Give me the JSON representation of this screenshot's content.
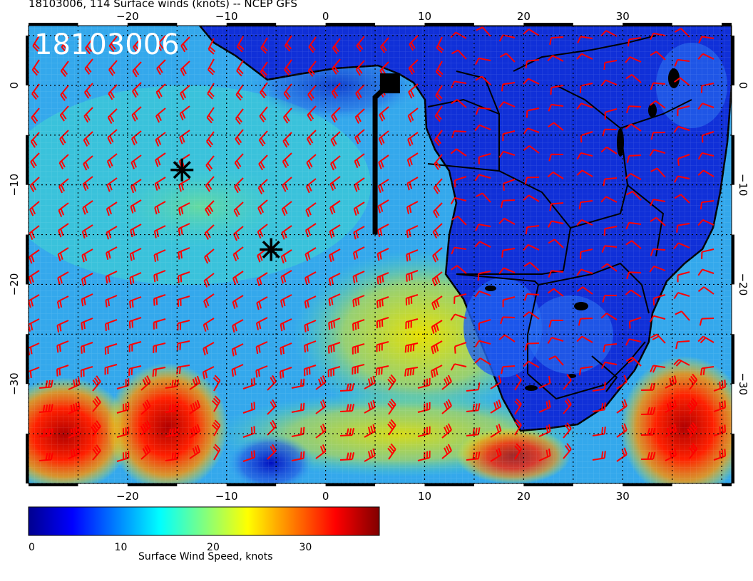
{
  "map_title": "18103006, 114 Surface winds (knots) -- NCEP GFS",
  "timestamp_label": "18103006",
  "colorbar": {
    "title": "Surface Wind Speed, knots",
    "min": 0,
    "max": 38,
    "ticks": [
      {
        "value": 0,
        "label": "0"
      },
      {
        "value": 10,
        "label": "10"
      },
      {
        "value": 20,
        "label": "20"
      },
      {
        "value": 30,
        "label": "30"
      }
    ],
    "stops": [
      "#00008f",
      "#0000ff",
      "#0080ff",
      "#00ffff",
      "#80ff80",
      "#ffff00",
      "#ff8000",
      "#ff0000",
      "#800000"
    ]
  },
  "map": {
    "lon_range": [
      -30,
      41
    ],
    "lat_range": [
      -40,
      6
    ],
    "lon_ticks": [
      {
        "value": -20,
        "label": "−20"
      },
      {
        "value": -10,
        "label": "−10"
      },
      {
        "value": 0,
        "label": "0"
      },
      {
        "value": 10,
        "label": "10"
      },
      {
        "value": 20,
        "label": "20"
      },
      {
        "value": 30,
        "label": "30"
      }
    ],
    "lat_ticks": [
      {
        "value": 0,
        "label": "0"
      },
      {
        "value": -10,
        "label": "−10"
      },
      {
        "value": -20,
        "label": "−20"
      },
      {
        "value": -30,
        "label": "−30"
      }
    ],
    "barb_color": "#ff0000",
    "asterisk_markers": [
      {
        "lon": -14.5,
        "lat": -8.5
      },
      {
        "lon": -5.5,
        "lat": -16.5
      }
    ],
    "square_marker": {
      "lon": 6.5,
      "lat": 0.2
    },
    "track_line": [
      [
        5,
        -15
      ],
      [
        5,
        -1.2
      ],
      [
        6.5,
        0.2
      ]
    ]
  }
}
